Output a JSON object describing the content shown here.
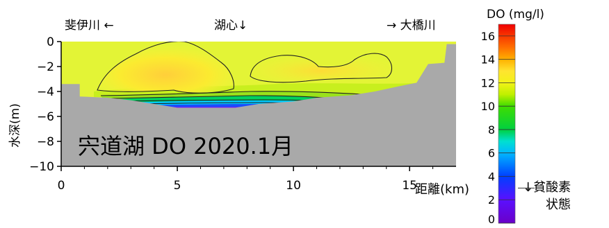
{
  "chart_data": {
    "type": "heatmap",
    "title": "宍道湖 DO 2020.1月",
    "xlabel": "距離(km)",
    "ylabel": "水深(m)",
    "xlim": [
      0,
      17
    ],
    "ylim": [
      -10,
      0
    ],
    "x_ticks": [
      "0",
      "5",
      "10",
      "15"
    ],
    "y_ticks": [
      "0",
      "−2",
      "−4",
      "−6",
      "−8",
      "−10"
    ],
    "x_tick_values": [
      0,
      5,
      10,
      15
    ],
    "y_tick_values": [
      0,
      -2,
      -4,
      -6,
      -8,
      -10
    ],
    "annotations": {
      "left": "斐伊川 ←",
      "center": "湖心↓",
      "right": "→ 大橋川"
    },
    "bottom_profile": [
      {
        "x": 0.0,
        "y": -3.4
      },
      {
        "x": 0.8,
        "y": -3.4
      },
      {
        "x": 0.8,
        "y": -4.4
      },
      {
        "x": 2.0,
        "y": -4.5
      },
      {
        "x": 3.0,
        "y": -4.7
      },
      {
        "x": 4.0,
        "y": -5.0
      },
      {
        "x": 5.0,
        "y": -5.3
      },
      {
        "x": 6.0,
        "y": -5.3
      },
      {
        "x": 7.5,
        "y": -5.3
      },
      {
        "x": 8.5,
        "y": -5.0
      },
      {
        "x": 10.0,
        "y": -4.8
      },
      {
        "x": 11.0,
        "y": -4.5
      },
      {
        "x": 12.5,
        "y": -4.3
      },
      {
        "x": 13.5,
        "y": -4.0
      },
      {
        "x": 14.5,
        "y": -3.6
      },
      {
        "x": 15.3,
        "y": -3.3
      },
      {
        "x": 15.8,
        "y": -1.8
      },
      {
        "x": 16.5,
        "y": -1.7
      },
      {
        "x": 16.6,
        "y": -0.2
      },
      {
        "x": 17.0,
        "y": -0.2
      }
    ],
    "do_field_summary": {
      "surface_mgL": 12.5,
      "core_max_mgL": 13.5,
      "near_bottom_min_mgL": 3.0,
      "units": "mg/l"
    },
    "colorbar": {
      "title": "DO (mg/l)",
      "range": [
        0,
        17
      ],
      "ticks": [
        "16",
        "14",
        "12",
        "10",
        "8",
        "6",
        "4",
        "2",
        "0"
      ],
      "tick_values": [
        16,
        14,
        12,
        10,
        8,
        6,
        4,
        2,
        0
      ],
      "hypoxia_threshold": 3,
      "hypoxia_label_line1": "↓貧酸素",
      "hypoxia_label_line2": "状態",
      "stops": [
        {
          "v": 0,
          "color": "#6a00c8"
        },
        {
          "v": 2,
          "color": "#5a10ff"
        },
        {
          "v": 4,
          "color": "#0040ff"
        },
        {
          "v": 6,
          "color": "#00b8ff"
        },
        {
          "v": 7,
          "color": "#00e0d0"
        },
        {
          "v": 8,
          "color": "#00d040"
        },
        {
          "v": 10,
          "color": "#40dd00"
        },
        {
          "v": 11,
          "color": "#c0f000"
        },
        {
          "v": 12,
          "color": "#f2f218"
        },
        {
          "v": 13,
          "color": "#ffe430"
        },
        {
          "v": 14,
          "color": "#ffb000"
        },
        {
          "v": 15,
          "color": "#ff7000"
        },
        {
          "v": 17,
          "color": "#f00000"
        }
      ]
    },
    "colors": {
      "bed": "#a9a9a9",
      "water_base": "#e3f436",
      "contour_line": "#222222"
    }
  }
}
